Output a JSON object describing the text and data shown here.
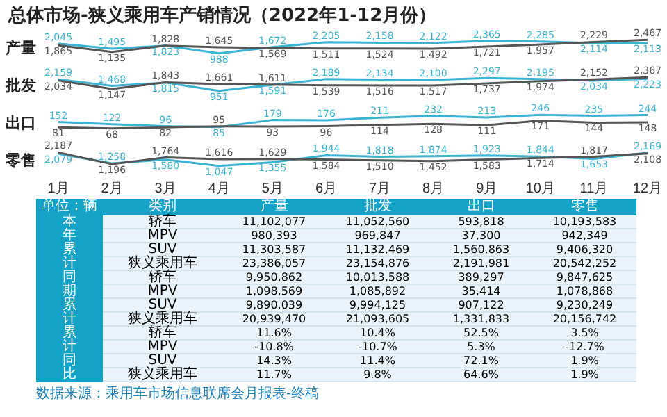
{
  "chart_data": [
    {
      "type": "line",
      "title": "总体市场-狭义乘用车产销情况（2022年1-12月份）",
      "ylabel": "产量",
      "tick_labels": false,
      "marker": "none",
      "series": [
        {
          "color": "#3bb4d4",
          "values": [
            2045,
            1495,
            1823,
            988,
            1672,
            2205,
            2158,
            2122,
            2365,
            2285,
            2114,
            2113
          ],
          "value_labels": [
            "2,045",
            "1,495",
            "1,823",
            "988",
            "1,672",
            "2,205",
            "2,158",
            "2,122",
            "2,365",
            "2,285",
            "2,114",
            "2,113"
          ]
        },
        {
          "color": "#555555",
          "values": [
            1865,
            1135,
            1828,
            1645,
            1569,
            1511,
            1524,
            1492,
            1721,
            1957,
            2229,
            2467
          ],
          "value_labels": [
            "1,865",
            "1,135",
            "1,828",
            "1,645",
            "1,569",
            "1,511",
            "1,524",
            "1,492",
            "1,721",
            "1,957",
            "2,229",
            "2,467"
          ]
        }
      ]
    },
    {
      "type": "line",
      "ylabel": "批发",
      "tick_labels": false,
      "marker": "none",
      "series": [
        {
          "color": "#3bb4d4",
          "values": [
            2159,
            1468,
            1815,
            951,
            1591,
            2189,
            2134,
            2100,
            2297,
            2195,
            2034,
            2223
          ],
          "value_labels": [
            "2,159",
            "1,468",
            "1,815",
            "951",
            "1,591",
            "2,189",
            "2,134",
            "2,100",
            "2,297",
            "2,195",
            "2,034",
            "2,223"
          ]
        },
        {
          "color": "#555555",
          "values": [
            2034,
            1147,
            1843,
            1661,
            1611,
            1539,
            1516,
            1517,
            1737,
            1974,
            2152,
            2367
          ],
          "value_labels": [
            "2,034",
            "1,147",
            "1,843",
            "1,661",
            "1,611",
            "1,539",
            "1,516",
            "1,517",
            "1,737",
            "1,974",
            "2,152",
            "2,367"
          ]
        }
      ]
    },
    {
      "type": "line",
      "ylabel": "出口",
      "tick_labels": false,
      "data_labels": true,
      "marker": "none",
      "series": [
        {
          "color": "#3bb4d4",
          "values": [
            152,
            122,
            96,
            85,
            179,
            176,
            211,
            232,
            213,
            246,
            235,
            244
          ]
        },
        {
          "color": "#555555",
          "values": [
            81,
            68,
            82,
            95,
            93,
            96,
            114,
            128,
            111,
            171,
            144,
            148
          ]
        }
      ]
    },
    {
      "type": "line",
      "ylabel": "零售",
      "categories": [
        "1月",
        "2月",
        "3月",
        "4月",
        "5月",
        "6月",
        "7月",
        "8月",
        "9月",
        "10月",
        "11月",
        "12月"
      ],
      "tick_labels": "x",
      "marker": "none",
      "series": [
        {
          "color": "#3bb4d4",
          "values": [
            2079,
            1258,
            1580,
            1047,
            1355,
            1944,
            1818,
            1874,
            1923,
            1844,
            1653,
            2169
          ],
          "value_labels": [
            "2,079",
            "1,258",
            "1,580",
            "1,047",
            "1,355",
            "1,944",
            "1,818",
            "1,874",
            "1,923",
            "1,844",
            "1,653",
            "2,169"
          ]
        },
        {
          "color": "#555555",
          "values": [
            2187,
            1196,
            1764,
            1616,
            1629,
            1584,
            1510,
            1452,
            1583,
            1714,
            1817,
            2108
          ],
          "value_labels": [
            "2,187",
            "1,196",
            "1,764",
            "1,616",
            "1,629",
            "1,584",
            "1,510",
            "1,452",
            "1,583",
            "1,714",
            "1,817",
            "2,108"
          ]
        }
      ]
    },
    {
      "type": "other",
      "ylabel": "类别",
      "categories": [
        "产量",
        "批发",
        "出口",
        "零售"
      ],
      "y_categories": [
        "轿车",
        "MPV",
        "SUV",
        "狭义乘用车",
        "轿车",
        "MPV",
        "SUV",
        "狭义乘用车",
        "轿车",
        "MPV",
        "SUV",
        "狭义乘用车"
      ],
      "y2_categories": [
        "本年累计",
        null,
        null,
        null,
        "同期累计",
        null,
        null,
        null,
        "累计同比",
        null,
        null,
        null
      ],
      "cell_labels": [
        [
          "11,102,077",
          "11,052,560",
          "593,818",
          "10,193,583"
        ],
        [
          "980,393",
          "969,847",
          "37,300",
          "942,349"
        ],
        [
          "11,303,587",
          "11,132,469",
          "1,560,863",
          "9,406,320"
        ],
        [
          "23,386,057",
          "23,154,876",
          "2,191,981",
          "20,542,252"
        ],
        [
          "9,950,862",
          "10,013,588",
          "389,297",
          "9,847,625"
        ],
        [
          "1,098,569",
          "1,085,892",
          "35,414",
          "1,078,868"
        ],
        [
          "9,890,039",
          "9,994,125",
          "907,122",
          "9,230,249"
        ],
        [
          "20,939,470",
          "21,093,605",
          "1,331,833",
          "20,156,742"
        ],
        [
          "11.6%",
          "10.4%",
          "52.5%",
          "3.5%"
        ],
        [
          "-10.8%",
          "-10.7%",
          "5.3%",
          "-12.7%"
        ],
        [
          "14.3%",
          "11.4%",
          "72.1%",
          "1.9%"
        ],
        [
          "11.7%",
          "9.8%",
          "64.6%",
          "1.9%"
        ]
      ],
      "annotations": [
        "单位：辆",
        "数据来源：乘用车市场信息联席会月报表-终稿"
      ]
    }
  ]
}
